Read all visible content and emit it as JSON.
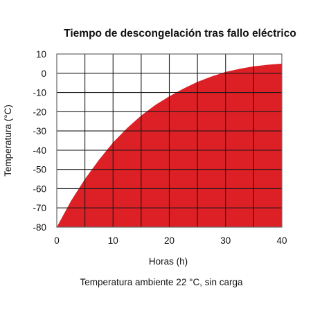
{
  "chart_data": {
    "type": "area",
    "title": "Tiempo de descongelación tras fallo eléctrico",
    "xlabel": "Horas (h)",
    "ylabel": "Temperatura (°C)",
    "caption": "Temperatura ambiente 22 °C, sin carga",
    "xlim": [
      0,
      40
    ],
    "ylim": [
      -80,
      10
    ],
    "x_ticks": [
      0,
      10,
      20,
      30,
      40
    ],
    "y_ticks": [
      10,
      0,
      -10,
      -20,
      -30,
      -40,
      -50,
      -60,
      -70,
      -80
    ],
    "grid": true,
    "series": [
      {
        "x": [
          0,
          2.5,
          5,
          7.5,
          10,
          12.5,
          15,
          17.5,
          20,
          22.5,
          25,
          27.5,
          30,
          32.5,
          35,
          37.5,
          40
        ],
        "y": [
          -80,
          -66.5,
          -55,
          -45,
          -36,
          -28.5,
          -22,
          -16.5,
          -12,
          -8,
          -4.5,
          -1.7,
          0.7,
          2.3,
          3.6,
          4.4,
          5
        ]
      }
    ],
    "colors": {
      "fill": "#dd1f26",
      "grid": "#1a1a1a",
      "frame": "#666666"
    }
  }
}
